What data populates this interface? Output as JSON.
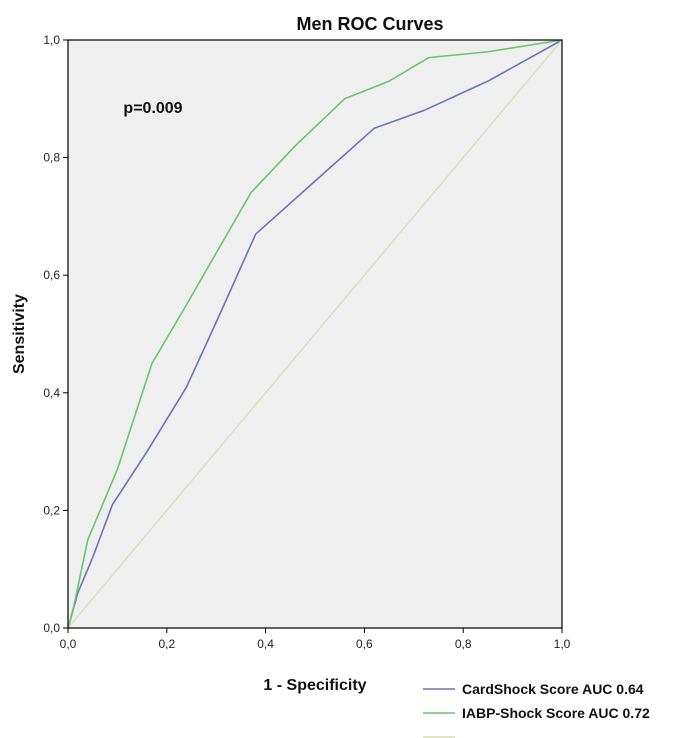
{
  "chart_data": {
    "type": "line",
    "title": "Men ROC Curves",
    "xlabel": "1 - Specificity",
    "ylabel": "Sensitivity",
    "xlim": [
      0,
      1
    ],
    "ylim": [
      0,
      1
    ],
    "xticks": [
      "0,0",
      "0,2",
      "0,4",
      "0,6",
      "0,8",
      "1,0"
    ],
    "yticks": [
      "0,0",
      "0,2",
      "0,4",
      "0,6",
      "0,8",
      "1,0"
    ],
    "annotation": "p=0.009",
    "grid": false,
    "background": "#efefef",
    "legend_position": "bottom-right",
    "series": [
      {
        "name": "CardShock Score AUC 0.64",
        "color": "#6b74b8",
        "x": [
          0,
          0.01,
          0.02,
          0.05,
          0.09,
          0.16,
          0.24,
          0.3,
          0.38,
          0.5,
          0.62,
          0.72,
          0.85,
          1.0
        ],
        "y": [
          0,
          0.03,
          0.06,
          0.12,
          0.21,
          0.3,
          0.41,
          0.52,
          0.67,
          0.76,
          0.85,
          0.88,
          0.93,
          1.0
        ]
      },
      {
        "name": "IABP-Shock Score AUC 0.72",
        "color": "#6cc46c",
        "x": [
          0,
          0.01,
          0.02,
          0.04,
          0.1,
          0.17,
          0.24,
          0.37,
          0.46,
          0.56,
          0.65,
          0.73,
          0.85,
          1.0
        ],
        "y": [
          0,
          0.03,
          0.07,
          0.15,
          0.27,
          0.45,
          0.55,
          0.74,
          0.82,
          0.9,
          0.93,
          0.97,
          0.98,
          1.0
        ]
      },
      {
        "name": "",
        "color": "#d9dcb4",
        "x": [
          0,
          1
        ],
        "y": [
          0,
          1
        ]
      }
    ]
  },
  "colors": {
    "plot_background": "#efefef",
    "frame": "#000000"
  }
}
